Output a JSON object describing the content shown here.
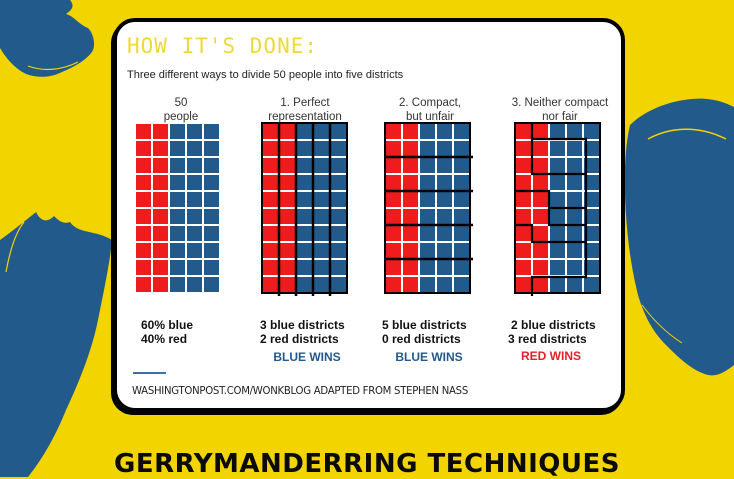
{
  "card": {
    "title": "HOW IT'S DONE:",
    "subtitle": "Three different ways to divide 50 people into five districts",
    "source": "WASHINGTONPOST.COM/WONKBLOG ADAPTED FROM STEPHEN NASS"
  },
  "columns": [
    {
      "heading_line1": "50",
      "heading_line2": "people",
      "stat_line1": "60% blue",
      "stat_line2": "40% red",
      "winner": ""
    },
    {
      "heading_line1": "1. Perfect",
      "heading_line2": "representation",
      "stat_line1": "3 blue districts",
      "stat_line2": "2 red districts",
      "winner": "BLUE WINS"
    },
    {
      "heading_line1": "2. Compact,",
      "heading_line2": "but unfair",
      "stat_line1": "5 blue districts",
      "stat_line2": "0 red districts",
      "winner": "BLUE WINS"
    },
    {
      "heading_line1": "3. Neither compact",
      "heading_line2": "nor fair",
      "stat_line1": "2 blue districts",
      "stat_line2": "3 red districts",
      "winner": "RED WINS"
    }
  ],
  "colors": {
    "background": "#f2d400",
    "brush": "#235a8c",
    "red": "#ee1c1c",
    "blue": "#235a8c",
    "blue_wins": "#235a8c",
    "red_wins": "#e4202a",
    "title": "#f0d83a"
  },
  "bottom_title": "GERRYMANDERRING TECHNIQUES",
  "chart_data": {
    "type": "grid",
    "title": "HOW IT'S DONE:",
    "subtitle": "Three different ways to divide 50 people into five districts",
    "grid": {
      "rows": 10,
      "cols": 5,
      "red_cols": 2,
      "blue_cols": 3
    },
    "population": {
      "total": 50,
      "blue_pct": 60,
      "red_pct": 40
    },
    "scenarios": [
      {
        "name": "Perfect representation",
        "districts": "5 vertical columns of 10",
        "blue_districts": 3,
        "red_districts": 2,
        "winner": "BLUE"
      },
      {
        "name": "Compact, but unfair",
        "districts": "5 horizontal bands of 2 rows",
        "blue_districts": 5,
        "red_districts": 0,
        "winner": "BLUE"
      },
      {
        "name": "Neither compact nor fair",
        "districts": "interlocking irregular shapes",
        "blue_districts": 2,
        "red_districts": 3,
        "winner": "RED"
      }
    ]
  }
}
